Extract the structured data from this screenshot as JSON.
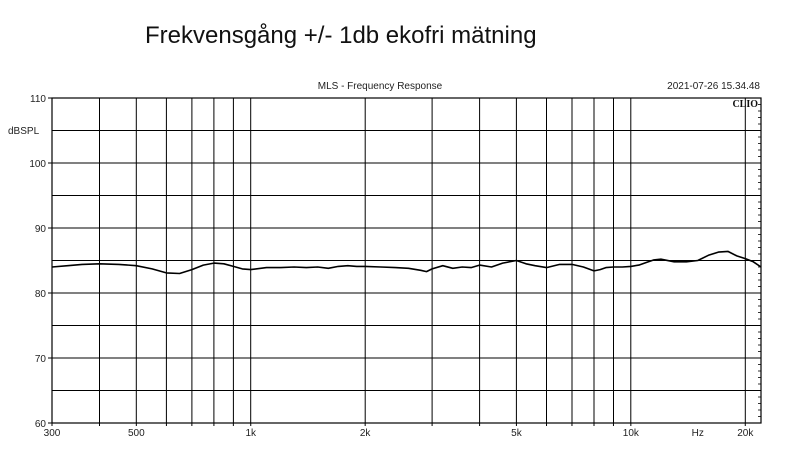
{
  "page": {
    "title": "Frekvensgång +/- 1db ekofri mätning"
  },
  "chart_data": {
    "type": "line",
    "title": "MLS - Frequency Response",
    "timestamp": "2021-07-26 15.34.48",
    "brand": "CLIO",
    "ylabel": "dBSPL",
    "xlabel": "Hz",
    "x_scale": "log",
    "xlim": [
      300,
      22000
    ],
    "ylim": [
      60,
      110
    ],
    "grid": true,
    "x_ticks": [
      {
        "value": 300,
        "label": "300"
      },
      {
        "value": 500,
        "label": "500"
      },
      {
        "value": 1000,
        "label": "1k"
      },
      {
        "value": 2000,
        "label": "2k"
      },
      {
        "value": 5000,
        "label": "5k"
      },
      {
        "value": 10000,
        "label": "10k"
      },
      {
        "value": 20000,
        "label": "20k"
      }
    ],
    "x_unit_label": {
      "value": 15000,
      "label": "Hz"
    },
    "x_gridlines": [
      400,
      500,
      600,
      700,
      800,
      900,
      1000,
      2000,
      3000,
      4000,
      5000,
      6000,
      7000,
      8000,
      9000,
      10000,
      20000
    ],
    "y_ticks": [
      {
        "value": 110,
        "label": "110"
      },
      {
        "value": 100,
        "label": "100"
      },
      {
        "value": 90,
        "label": "90"
      },
      {
        "value": 80,
        "label": "80"
      },
      {
        "value": 70,
        "label": "70"
      },
      {
        "value": 60,
        "label": "60"
      }
    ],
    "y_gridlines": [
      65,
      70,
      75,
      80,
      85,
      90,
      95,
      100,
      105
    ],
    "series": [
      {
        "x": [
          300,
          330,
          360,
          400,
          450,
          500,
          550,
          600,
          650,
          700,
          750,
          800,
          850,
          900,
          950,
          1000,
          1100,
          1200,
          1300,
          1400,
          1500,
          1600,
          1700,
          1800,
          1900,
          2000,
          2200,
          2400,
          2600,
          2800,
          2900,
          3000,
          3200,
          3400,
          3600,
          3800,
          4000,
          4300,
          4600,
          5000,
          5300,
          5600,
          6000,
          6500,
          7000,
          7500,
          8000,
          8300,
          8600,
          9000,
          9500,
          10000,
          10500,
          11000,
          11500,
          12000,
          13000,
          14000,
          15000,
          16000,
          17000,
          18000,
          19000,
          20000,
          21000,
          22000
        ],
        "values": [
          84.0,
          84.2,
          84.4,
          84.5,
          84.4,
          84.2,
          83.7,
          83.1,
          83.0,
          83.6,
          84.3,
          84.6,
          84.5,
          84.1,
          83.7,
          83.6,
          83.9,
          83.9,
          84.0,
          83.9,
          84.0,
          83.8,
          84.1,
          84.2,
          84.1,
          84.1,
          84.0,
          83.9,
          83.8,
          83.5,
          83.3,
          83.7,
          84.2,
          83.8,
          84.0,
          83.9,
          84.3,
          84.0,
          84.6,
          85.0,
          84.5,
          84.2,
          83.9,
          84.4,
          84.4,
          84.0,
          83.4,
          83.6,
          83.9,
          84.0,
          84.0,
          84.1,
          84.3,
          84.7,
          85.1,
          85.2,
          84.8,
          84.8,
          85.0,
          85.8,
          86.3,
          86.4,
          85.7,
          85.3,
          84.8,
          84.0
        ]
      }
    ]
  }
}
